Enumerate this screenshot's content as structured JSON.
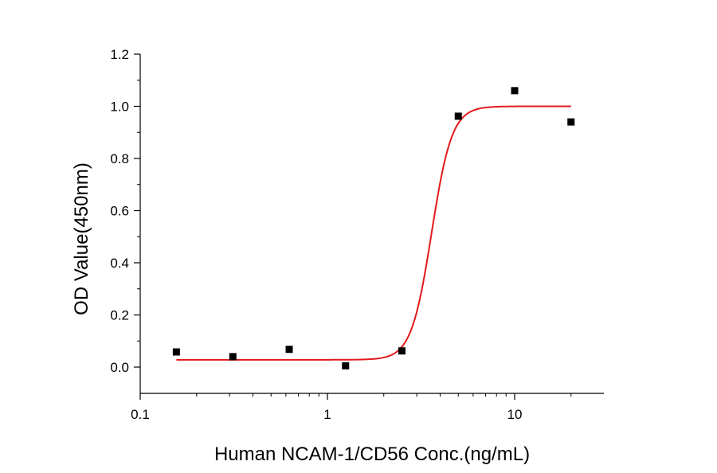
{
  "chart_data": {
    "type": "scatter",
    "title": "",
    "xlabel": "Human NCAM-1/CD56 Conc.(ng/mL)",
    "ylabel": "OD Value(450nm)",
    "xscale": "log",
    "xlim": [
      0.1,
      30
    ],
    "ylim": [
      -0.1,
      1.2
    ],
    "grid": false,
    "legend": "none",
    "x_ticks": [
      {
        "value": 0.1,
        "label": "0.1"
      },
      {
        "value": 1,
        "label": "1"
      },
      {
        "value": 10,
        "label": "10"
      }
    ],
    "y_ticks": [
      {
        "value": 0.0,
        "label": "0.0"
      },
      {
        "value": 0.2,
        "label": "0.2"
      },
      {
        "value": 0.4,
        "label": "0.4"
      },
      {
        "value": 0.6,
        "label": "0.6"
      },
      {
        "value": 0.8,
        "label": "0.8"
      },
      {
        "value": 1.0,
        "label": "1.0"
      },
      {
        "value": 1.2,
        "label": "1.2"
      }
    ],
    "series": [
      {
        "kind": "points",
        "color": "#000000",
        "marker": "square",
        "x": [
          0.156,
          0.3125,
          0.625,
          1.25,
          2.5,
          5,
          10,
          20
        ],
        "y": [
          0.058,
          0.04,
          0.068,
          0.005,
          0.062,
          0.962,
          1.06,
          0.94
        ]
      },
      {
        "kind": "fit",
        "color": "#e31a1c",
        "model": "4PL",
        "bottom": 0.028,
        "top": 1.0,
        "ec50": 3.6,
        "hill": 8.0,
        "x_range": [
          0.156,
          20
        ]
      }
    ]
  }
}
